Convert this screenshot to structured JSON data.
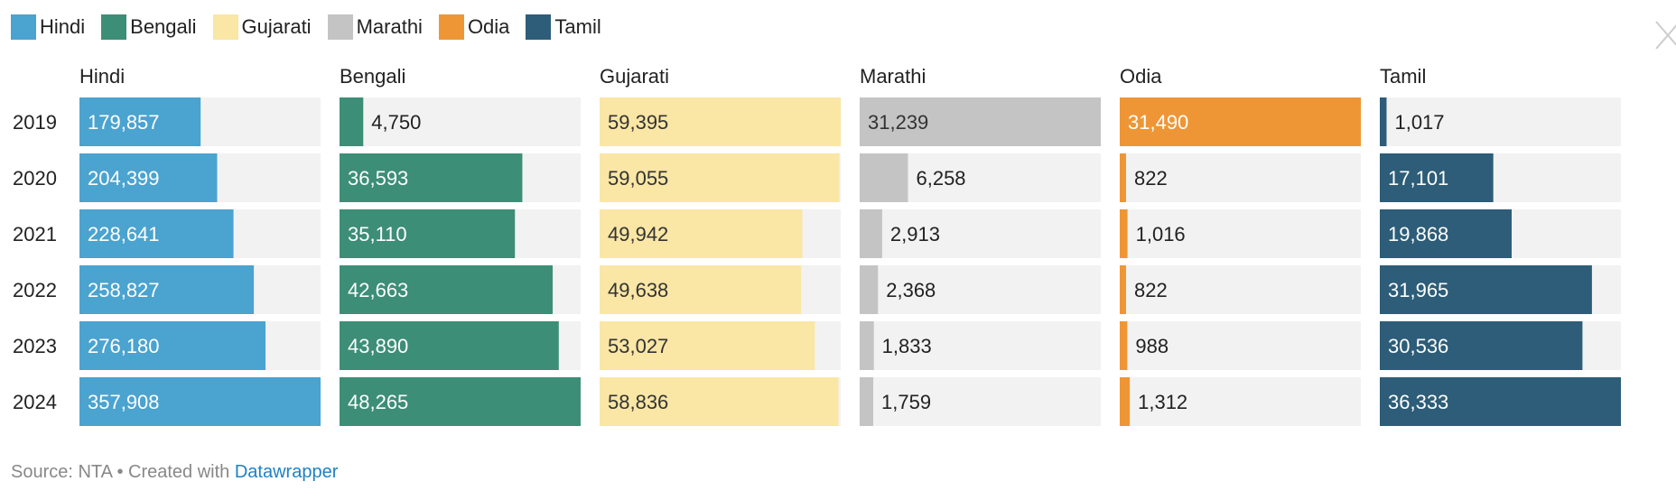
{
  "legend": [
    {
      "name": "Hindi",
      "color": "#4ba3cf"
    },
    {
      "name": "Bengali",
      "color": "#3d8e76"
    },
    {
      "name": "Gujarati",
      "color": "#fae6a5"
    },
    {
      "name": "Marathi",
      "color": "#c4c4c4"
    },
    {
      "name": "Odia",
      "color": "#ee9636"
    },
    {
      "name": "Tamil",
      "color": "#2d5d78"
    }
  ],
  "footer": {
    "source_text": "Source: NTA • Created with",
    "link_text": "Datawrapper"
  },
  "chart_data": {
    "type": "bar",
    "categories": [
      "2019",
      "2020",
      "2021",
      "2022",
      "2023",
      "2024"
    ],
    "series": [
      {
        "name": "Hindi",
        "color": "#4ba3cf",
        "values": [
          179857,
          204399,
          228641,
          258827,
          276180,
          357908
        ],
        "labels": [
          "179,857",
          "204,399",
          "228,641",
          "258,827",
          "276,180",
          "357,908"
        ]
      },
      {
        "name": "Bengali",
        "color": "#3d8e76",
        "values": [
          4750,
          36593,
          35110,
          42663,
          43890,
          48265
        ],
        "labels": [
          "4,750",
          "36,593",
          "35,110",
          "42,663",
          "43,890",
          "48,265"
        ]
      },
      {
        "name": "Gujarati",
        "color": "#fae6a5",
        "values": [
          59395,
          59055,
          49942,
          49638,
          53027,
          58836
        ],
        "labels": [
          "59,395",
          "59,055",
          "49,942",
          "49,638",
          "53,027",
          "58,836"
        ]
      },
      {
        "name": "Marathi",
        "color": "#c4c4c4",
        "values": [
          31239,
          6258,
          2913,
          2368,
          1833,
          1759
        ],
        "labels": [
          "31,239",
          "6,258",
          "2,913",
          "2,368",
          "1,833",
          "1,759"
        ]
      },
      {
        "name": "Odia",
        "color": "#ee9636",
        "values": [
          31490,
          822,
          1016,
          822,
          988,
          1312
        ],
        "labels": [
          "31,490",
          "822",
          "1,016",
          "822",
          "988",
          "1,312"
        ]
      },
      {
        "name": "Tamil",
        "color": "#2d5d78",
        "values": [
          1017,
          17101,
          19868,
          31965,
          30536,
          36333
        ],
        "labels": [
          "1,017",
          "17,101",
          "19,868",
          "31,965",
          "30,536",
          "36,333"
        ]
      }
    ]
  }
}
